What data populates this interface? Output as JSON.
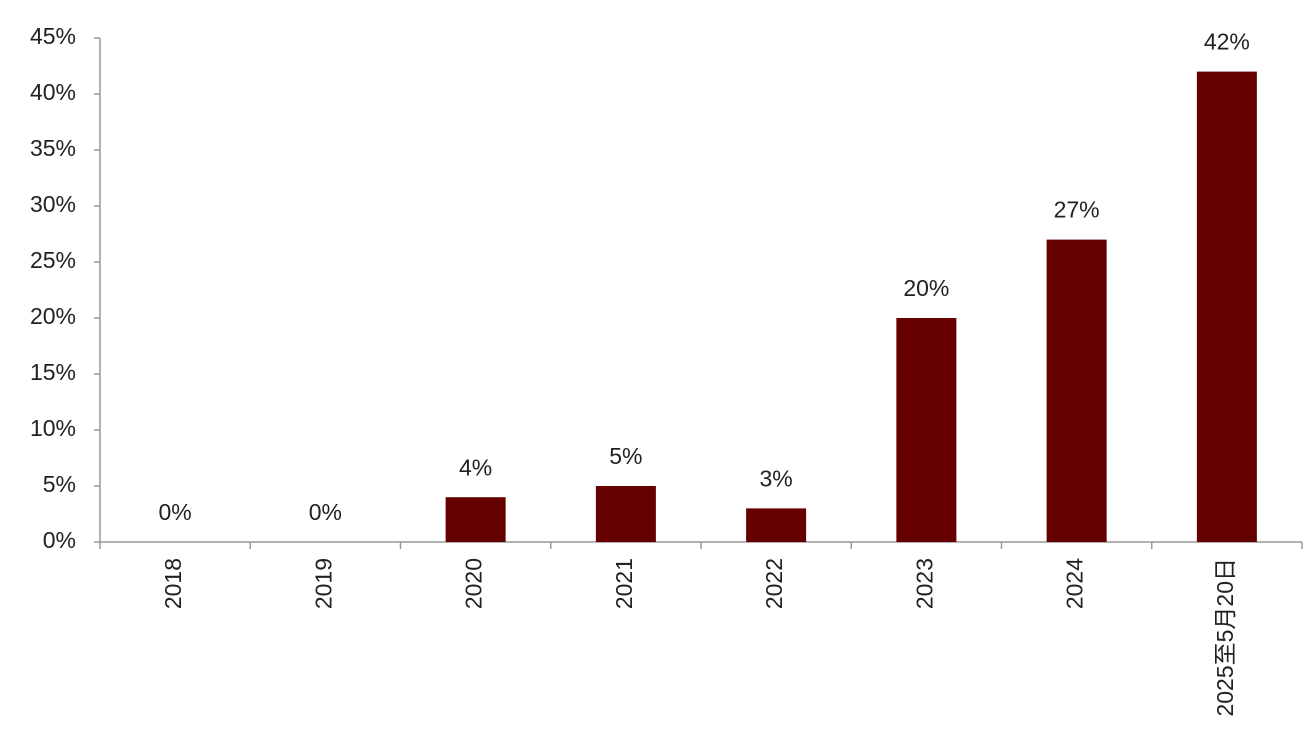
{
  "chart_data": {
    "type": "bar",
    "categories": [
      "2018",
      "2019",
      "2020",
      "2021",
      "2022",
      "2023",
      "2024",
      "2025至5月20日"
    ],
    "values": [
      0,
      0,
      4,
      5,
      3,
      20,
      27,
      42
    ],
    "value_labels": [
      "0%",
      "0%",
      "4%",
      "5%",
      "3%",
      "20%",
      "27%",
      "42%"
    ],
    "color": "#660000",
    "ylim": [
      0,
      45
    ],
    "yticks": [
      {
        "value": 0,
        "label": "0%"
      },
      {
        "value": 5,
        "label": "5%"
      },
      {
        "value": 10,
        "label": "10%"
      },
      {
        "value": 15,
        "label": "15%"
      },
      {
        "value": 20,
        "label": "20%"
      },
      {
        "value": 25,
        "label": "25%"
      },
      {
        "value": 30,
        "label": "30%"
      },
      {
        "value": 35,
        "label": "35%"
      },
      {
        "value": 40,
        "label": "40%"
      },
      {
        "value": 45,
        "label": "45%"
      }
    ],
    "grid": false
  }
}
